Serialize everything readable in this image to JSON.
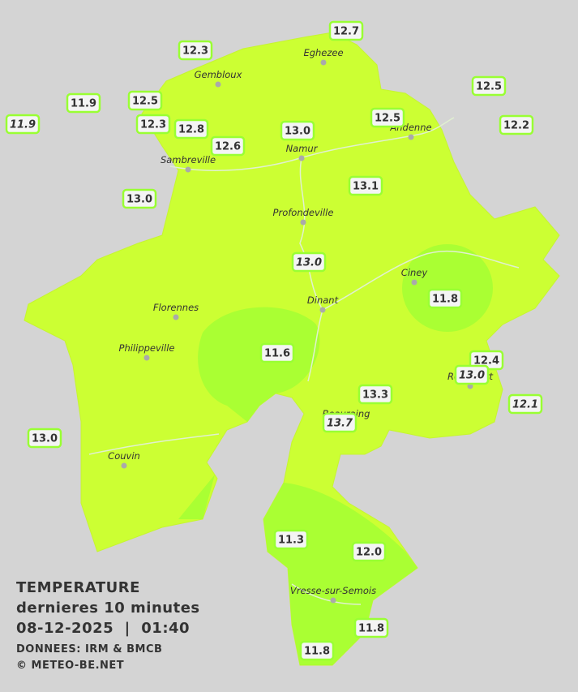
{
  "cities": [
    "Eghezee",
    "Gembloux",
    "Andenne",
    "Namur",
    "Sambreville",
    "Profondeville",
    "Ciney",
    "Dinant",
    "Florennes",
    "Philippeville",
    "Rochefort",
    "Beauraing",
    "Couvin",
    "Vresse-sur-Semois"
  ],
  "stations": [
    {
      "value": "12.7",
      "italic": false
    },
    {
      "value": "12.3",
      "italic": false
    },
    {
      "value": "11.9",
      "italic": false
    },
    {
      "value": "12.5",
      "italic": false
    },
    {
      "value": "11.9",
      "italic": true
    },
    {
      "value": "12.3",
      "italic": false
    },
    {
      "value": "12.8",
      "italic": false
    },
    {
      "value": "12.6",
      "italic": false
    },
    {
      "value": "13.0",
      "italic": false
    },
    {
      "value": "12.5",
      "italic": false
    },
    {
      "value": "12.5",
      "italic": false
    },
    {
      "value": "12.2",
      "italic": false
    },
    {
      "value": "13.1",
      "italic": false
    },
    {
      "value": "13.0",
      "italic": false
    },
    {
      "value": "13.0",
      "italic": true
    },
    {
      "value": "11.8",
      "italic": false
    },
    {
      "value": "11.6",
      "italic": false
    },
    {
      "value": "12.4",
      "italic": false
    },
    {
      "value": "13.0",
      "italic": true
    },
    {
      "value": "13.3",
      "italic": false
    },
    {
      "value": "12.1",
      "italic": true
    },
    {
      "value": "13.7",
      "italic": true
    },
    {
      "value": "13.0",
      "italic": false
    },
    {
      "value": "11.3",
      "italic": false
    },
    {
      "value": "12.0",
      "italic": false
    },
    {
      "value": "11.8",
      "italic": false
    },
    {
      "value": "11.8",
      "italic": false
    }
  ],
  "info": {
    "title": "TEMPERATURE",
    "subtitle": "dernieres 10 minutes",
    "datetime": "08-12-2025  |  01:40",
    "source": "DONNEES: IRM & BMCB",
    "copyright": "© METEO-BE.NET"
  }
}
